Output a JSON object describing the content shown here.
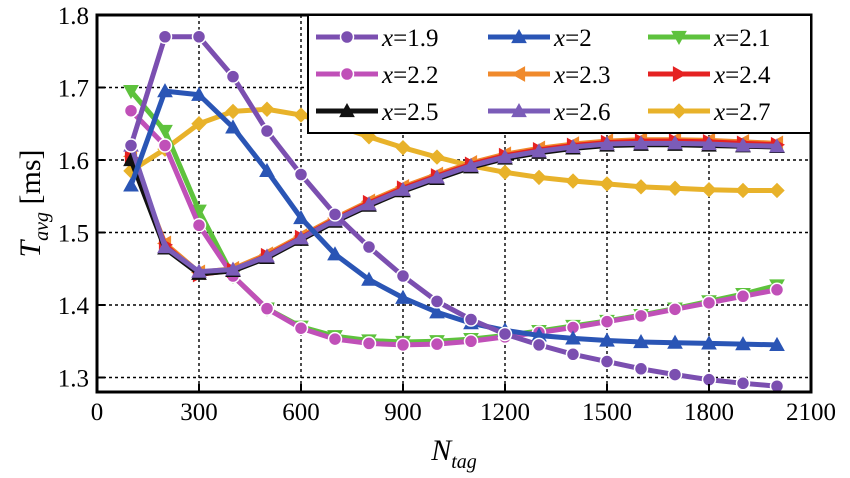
{
  "chart_data": {
    "type": "line",
    "title": "",
    "xlabel_main": "N",
    "xlabel_sub": "tag",
    "ylabel_main": "T",
    "ylabel_sub": "avg",
    "ylabel_unit": " [ms]",
    "xlim": [
      0,
      2100
    ],
    "ylim": [
      1.28,
      1.8
    ],
    "xticks": [
      0,
      300,
      600,
      900,
      1200,
      1500,
      1800,
      2100
    ],
    "yticks": [
      1.3,
      1.4,
      1.5,
      1.6,
      1.7,
      1.8
    ],
    "xtick_labels": [
      "0",
      "300",
      "600",
      "900",
      "1200",
      "1500",
      "1800",
      "2100"
    ],
    "ytick_labels": [
      "1.3",
      "1.4",
      "1.5",
      "1.6",
      "1.7",
      "1.8"
    ],
    "grid": true,
    "legend_position": "top-right",
    "x": [
      100,
      200,
      300,
      400,
      500,
      600,
      700,
      800,
      900,
      1000,
      1100,
      1200,
      1300,
      1400,
      1500,
      1600,
      1700,
      1800,
      1900,
      2000
    ],
    "series": [
      {
        "name": "x=1.9",
        "var": "x",
        "val": "=1.9",
        "color": "#7b4fb0",
        "marker": "circle",
        "values": [
          1.62,
          1.77,
          1.77,
          1.715,
          1.64,
          1.58,
          1.525,
          1.48,
          1.44,
          1.405,
          1.38,
          1.36,
          1.345,
          1.332,
          1.322,
          1.312,
          1.304,
          1.297,
          1.292,
          1.288
        ]
      },
      {
        "name": "x=2",
        "var": "x",
        "val": "=2",
        "color": "#2a55b5",
        "marker": "triangle",
        "values": [
          1.565,
          1.695,
          1.69,
          1.645,
          1.585,
          1.52,
          1.47,
          1.435,
          1.41,
          1.39,
          1.375,
          1.365,
          1.358,
          1.354,
          1.351,
          1.349,
          1.348,
          1.347,
          1.346,
          1.345
        ]
      },
      {
        "name": "x=2.1",
        "var": "x",
        "val": "=2.1",
        "color": "#5ec23d",
        "marker": "triangle-down",
        "values": [
          1.695,
          1.64,
          1.53,
          1.44,
          1.395,
          1.37,
          1.357,
          1.351,
          1.349,
          1.35,
          1.353,
          1.358,
          1.364,
          1.371,
          1.378,
          1.386,
          1.395,
          1.405,
          1.415,
          1.427
        ]
      },
      {
        "name": "x=2.2",
        "var": "x",
        "val": "=2.2",
        "color": "#c050b8",
        "marker": "circle",
        "values": [
          1.668,
          1.62,
          1.51,
          1.44,
          1.395,
          1.368,
          1.353,
          1.347,
          1.345,
          1.346,
          1.35,
          1.356,
          1.362,
          1.369,
          1.377,
          1.385,
          1.394,
          1.403,
          1.412,
          1.421
        ]
      },
      {
        "name": "x=2.3",
        "var": "x",
        "val": "=2.3",
        "color": "#f08a2c",
        "marker": "triangle-left",
        "values": [
          1.605,
          1.485,
          1.445,
          1.45,
          1.47,
          1.495,
          1.52,
          1.543,
          1.563,
          1.58,
          1.596,
          1.608,
          1.616,
          1.622,
          1.626,
          1.628,
          1.628,
          1.627,
          1.625,
          1.623
        ]
      },
      {
        "name": "x=2.4",
        "var": "x",
        "val": "=2.4",
        "color": "#e52222",
        "marker": "triangle-right",
        "values": [
          1.603,
          1.483,
          1.442,
          1.448,
          1.468,
          1.493,
          1.518,
          1.541,
          1.561,
          1.578,
          1.594,
          1.606,
          1.614,
          1.62,
          1.624,
          1.626,
          1.626,
          1.625,
          1.623,
          1.621
        ]
      },
      {
        "name": "x=2.5",
        "var": "x",
        "val": "=2.5",
        "color": "#111111",
        "marker": "triangle",
        "values": [
          1.6,
          1.478,
          1.443,
          1.447,
          1.465,
          1.49,
          1.515,
          1.537,
          1.557,
          1.574,
          1.59,
          1.602,
          1.61,
          1.616,
          1.62,
          1.621,
          1.621,
          1.62,
          1.619,
          1.618
        ]
      },
      {
        "name": "x=2.6",
        "var": "x",
        "val": "=2.6",
        "color": "#7b5cb8",
        "marker": "triangle",
        "values": [
          1.62,
          1.48,
          1.446,
          1.449,
          1.467,
          1.492,
          1.517,
          1.539,
          1.559,
          1.576,
          1.592,
          1.604,
          1.612,
          1.618,
          1.622,
          1.623,
          1.623,
          1.622,
          1.62,
          1.619
        ]
      },
      {
        "name": "x=2.7",
        "var": "x",
        "val": "=2.7",
        "color": "#e8b22a",
        "marker": "diamond",
        "values": [
          1.585,
          1.615,
          1.65,
          1.667,
          1.67,
          1.662,
          1.648,
          1.632,
          1.617,
          1.604,
          1.592,
          1.583,
          1.576,
          1.571,
          1.567,
          1.563,
          1.561,
          1.559,
          1.558,
          1.558
        ]
      }
    ]
  }
}
